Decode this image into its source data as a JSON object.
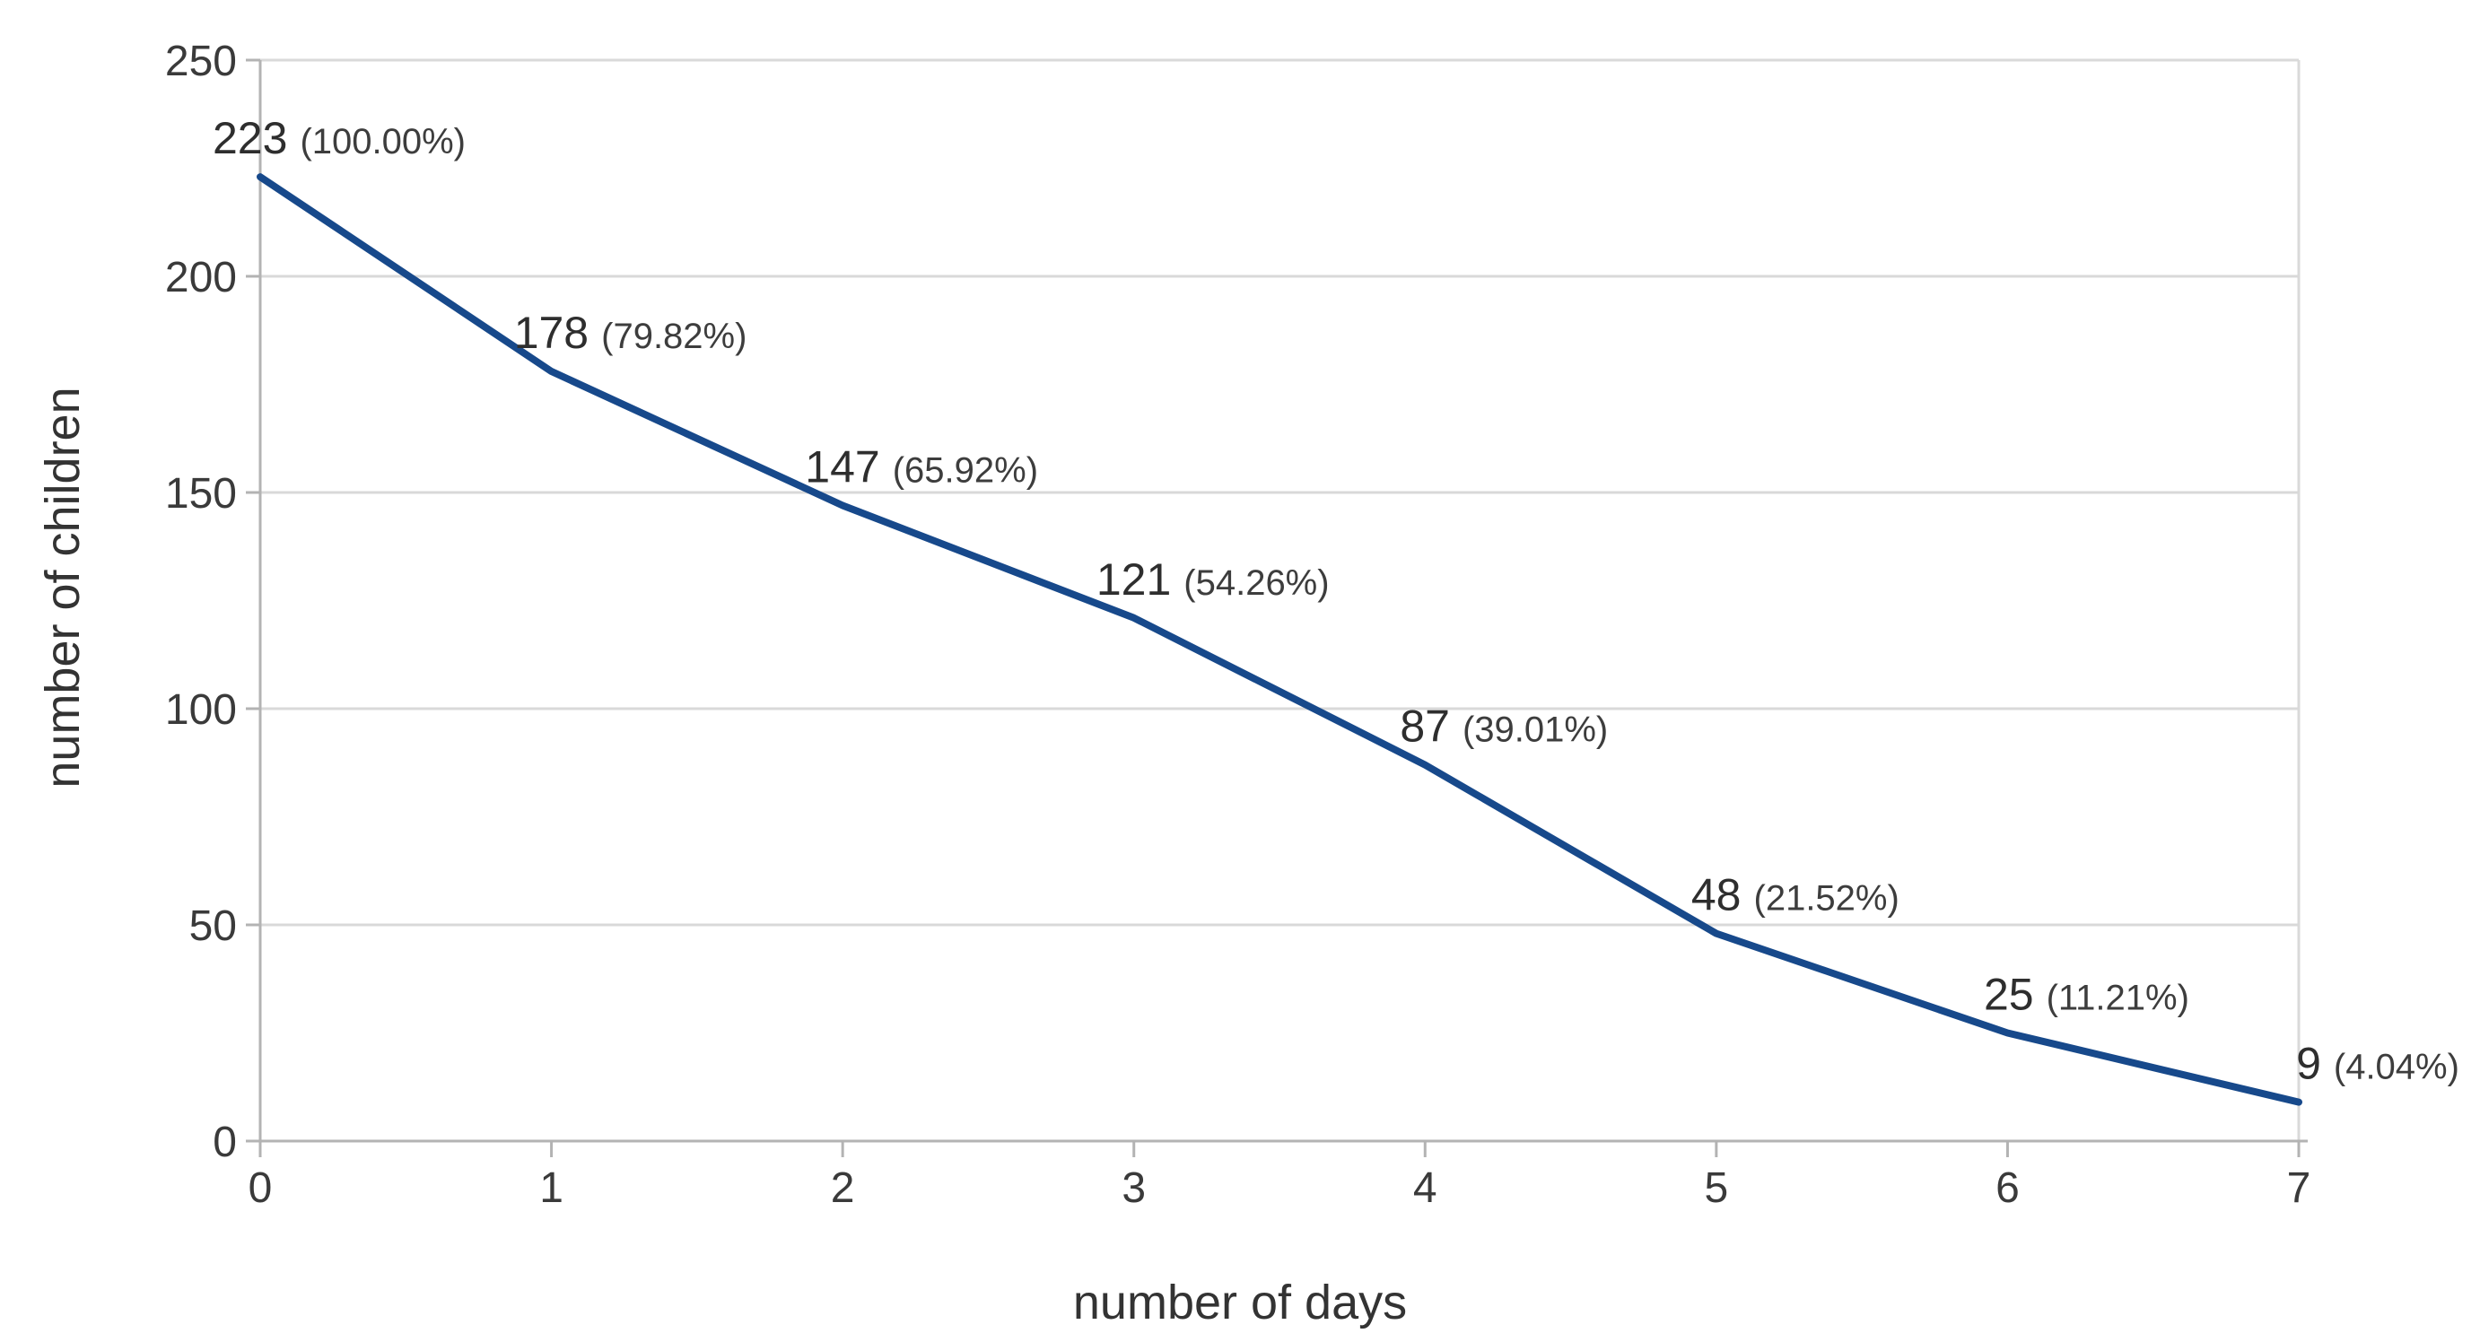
{
  "chart_data": {
    "type": "line",
    "xlabel": "number of days",
    "ylabel": "number of children",
    "x": [
      0,
      1,
      2,
      3,
      4,
      5,
      6,
      7
    ],
    "values": [
      223,
      178,
      147,
      121,
      87,
      48,
      25,
      9
    ],
    "points": [
      {
        "day": 0,
        "children": 223,
        "label": "223",
        "percent": "(100.00%)"
      },
      {
        "day": 1,
        "children": 178,
        "label": "178",
        "percent": "(79.82%)"
      },
      {
        "day": 2,
        "children": 147,
        "label": "147",
        "percent": "(65.92%)"
      },
      {
        "day": 3,
        "children": 121,
        "label": "121",
        "percent": "(54.26%)"
      },
      {
        "day": 4,
        "children": 87,
        "label": "87",
        "percent": "(39.01%)"
      },
      {
        "day": 5,
        "children": 48,
        "label": "48",
        "percent": "(21.52%)"
      },
      {
        "day": 6,
        "children": 25,
        "label": "25",
        "percent": "(11.21%)"
      },
      {
        "day": 7,
        "children": 9,
        "label": "9",
        "percent": "(4.04%)"
      }
    ],
    "xlim": [
      0,
      7
    ],
    "ylim": [
      0,
      250
    ],
    "x_ticks": [
      "0",
      "1",
      "2",
      "3",
      "4",
      "5",
      "6",
      "7"
    ],
    "y_ticks": [
      "0",
      "50",
      "100",
      "150",
      "200",
      "250"
    ],
    "grid": "horizontal",
    "legend": "none",
    "colors": {
      "line": "#17498b",
      "grid": "#d9d9d9",
      "axis": "#b3b3b3",
      "tick_label": "#3a3a3a",
      "data_label": "#2e2e2e",
      "data_label_percent": "#3d3d3d",
      "axis_title": "#333333",
      "background": "#ffffff"
    }
  }
}
